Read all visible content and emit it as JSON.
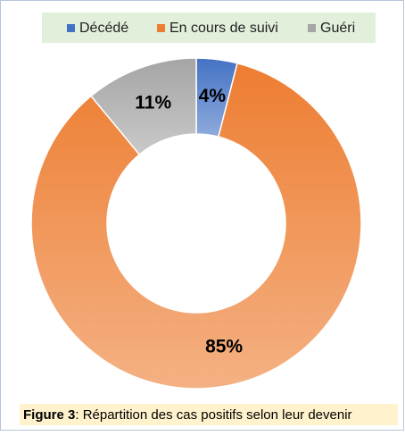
{
  "chart_data": {
    "type": "donut",
    "categories": [
      "Décédé",
      "En cours de suivi",
      "Guéri"
    ],
    "values": [
      4,
      85,
      11
    ],
    "value_labels": [
      "4%",
      "85%",
      "11%"
    ],
    "colors": [
      "#4472c4",
      "#ed7d31",
      "#a5a5a5"
    ],
    "legend": "top",
    "caption": {
      "label": "Figure 3",
      "text": ": Répartition des cas positifs selon leur devenir"
    }
  }
}
